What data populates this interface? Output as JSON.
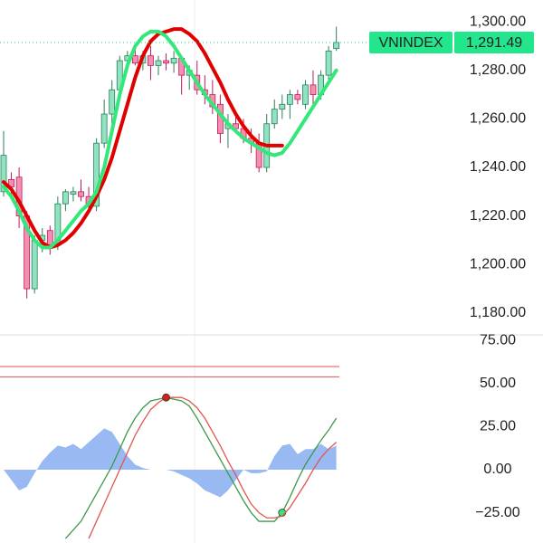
{
  "chart_data": [
    {
      "type": "candlestick",
      "symbol": "VNINDEX",
      "last_value_label": "1,291.49",
      "up_color": "#8fe3c0",
      "down_color": "#f48fb1",
      "open": [
        1230,
        1235,
        1236,
        1220,
        1190,
        1210,
        1214,
        1208,
        1225,
        1229,
        1230,
        1228,
        1224,
        1250,
        1262,
        1272,
        1284,
        1286,
        1283,
        1286,
        1282,
        1284,
        1283,
        1285,
        1278,
        1278,
        1272,
        1270,
        1266,
        1256,
        1258,
        1256,
        1252,
        1250,
        1240,
        1258,
        1264,
        1266,
        1270,
        1266,
        1274,
        1270,
        1278,
        1289
      ],
      "high": [
        1255,
        1238,
        1240,
        1222,
        1212,
        1215,
        1216,
        1228,
        1231,
        1232,
        1235,
        1232,
        1252,
        1268,
        1276,
        1286,
        1288,
        1290,
        1288,
        1290,
        1286,
        1287,
        1288,
        1286,
        1282,
        1284,
        1278,
        1276,
        1270,
        1262,
        1262,
        1260,
        1256,
        1254,
        1262,
        1268,
        1270,
        1272,
        1272,
        1276,
        1280,
        1280,
        1290,
        1298
      ],
      "low": [
        1228,
        1228,
        1215,
        1186,
        1188,
        1205,
        1204,
        1206,
        1222,
        1226,
        1226,
        1222,
        1222,
        1248,
        1258,
        1270,
        1280,
        1282,
        1280,
        1276,
        1278,
        1280,
        1279,
        1270,
        1272,
        1270,
        1266,
        1262,
        1250,
        1248,
        1254,
        1250,
        1246,
        1238,
        1238,
        1256,
        1260,
        1260,
        1266,
        1264,
        1266,
        1268,
        1276,
        1288
      ],
      "close": [
        1245,
        1232,
        1220,
        1190,
        1210,
        1212,
        1208,
        1225,
        1230,
        1230,
        1228,
        1224,
        1250,
        1262,
        1272,
        1284,
        1286,
        1283,
        1286,
        1282,
        1284,
        1283,
        1285,
        1278,
        1280,
        1272,
        1270,
        1265,
        1254,
        1258,
        1256,
        1252,
        1250,
        1240,
        1258,
        1264,
        1266,
        1270,
        1268,
        1274,
        1270,
        1278,
        1288,
        1291.49
      ],
      "series": [
        {
          "color": "#e00000",
          "width": 4,
          "values": [
            1234,
            1231,
            1226,
            1220,
            1214,
            1209,
            1207,
            1208,
            1210,
            1213,
            1217,
            1222,
            1228,
            1235,
            1244,
            1255,
            1266,
            1277,
            1286,
            1292,
            1295,
            1296,
            1297,
            1297,
            1295,
            1292,
            1287,
            1281,
            1275,
            1268,
            1262,
            1257,
            1253,
            1250,
            1249,
            1249,
            1249,
            null,
            null,
            null,
            null,
            null,
            null,
            null
          ]
        },
        {
          "color": "#33e87a",
          "width": 4,
          "values": [
            1232,
            1228,
            1222,
            1215,
            1210,
            1207,
            1207,
            1210,
            1214,
            1218,
            1222,
            1225,
            1230,
            1240,
            1255,
            1270,
            1282,
            1290,
            1294,
            1296,
            1296,
            1294,
            1290,
            1285,
            1280,
            1275,
            1270,
            1266,
            1262,
            1258,
            1255,
            1252,
            1250,
            1248,
            1246,
            1245,
            1246,
            1250,
            1255,
            1260,
            1265,
            1270,
            1275,
            1280
          ]
        }
      ],
      "ylim": [
        1171,
        1309
      ],
      "yticks": [
        {
          "value": 1300,
          "label": "1,300.00"
        },
        {
          "value": 1280,
          "label": "1,280.00"
        },
        {
          "value": 1260,
          "label": "1,260.00"
        },
        {
          "value": 1240,
          "label": "1,240.00"
        },
        {
          "value": 1220,
          "label": "1,220.00"
        },
        {
          "value": 1200,
          "label": "1,200.00"
        },
        {
          "value": 1180,
          "label": "1,180.00"
        }
      ]
    },
    {
      "type": "line",
      "histogram": {
        "color": "#7fa8f0",
        "values": [
          0,
          -6,
          -12,
          -10,
          -2,
          5,
          10,
          14,
          13,
          15,
          12,
          16,
          20,
          24,
          22,
          15,
          8,
          3,
          1,
          0,
          0,
          0,
          -1,
          -3,
          -5,
          -8,
          -12,
          -14,
          -16,
          -12,
          -6,
          0,
          -2,
          -2,
          -1,
          8,
          14,
          15,
          9,
          12,
          12,
          15,
          12,
          14
        ]
      },
      "levels": {
        "color": "#e05050",
        "values": [
          60,
          54
        ]
      },
      "series": [
        {
          "color": "#3c9a4a",
          "signal_color": "#33e87a",
          "signals": [
            36
          ],
          "values": [
            null,
            null,
            null,
            null,
            null,
            null,
            null,
            null,
            -40,
            -35,
            -30,
            -22,
            -14,
            -6,
            2,
            12,
            22,
            30,
            36,
            40,
            41,
            42,
            41,
            40,
            37,
            30,
            22,
            14,
            6,
            -2,
            -10,
            -18,
            -25,
            -30,
            -30,
            -30,
            -25,
            -16,
            -6,
            3,
            10,
            17,
            23,
            30
          ]
        },
        {
          "color": "#e0574f",
          "signal_color": "#d32020",
          "signals": [
            21
          ],
          "values": [
            null,
            null,
            null,
            null,
            null,
            null,
            null,
            null,
            null,
            null,
            null,
            -40,
            -30,
            -20,
            -10,
            0,
            10,
            20,
            28,
            35,
            39,
            42,
            42,
            42,
            40,
            36,
            30,
            22,
            14,
            5,
            -3,
            -12,
            -20,
            -25,
            -28,
            -28,
            -27,
            -22,
            -15,
            -8,
            0,
            7,
            12,
            16
          ]
        }
      ],
      "ylim": [
        -42.6,
        78.4
      ],
      "yticks": [
        {
          "value": 75,
          "label": "75.00"
        },
        {
          "value": 50,
          "label": "50.00"
        },
        {
          "value": 25,
          "label": "25.00"
        },
        {
          "value": 0,
          "label": "0.00"
        },
        {
          "value": -25,
          "label": "−25.00"
        }
      ]
    }
  ]
}
